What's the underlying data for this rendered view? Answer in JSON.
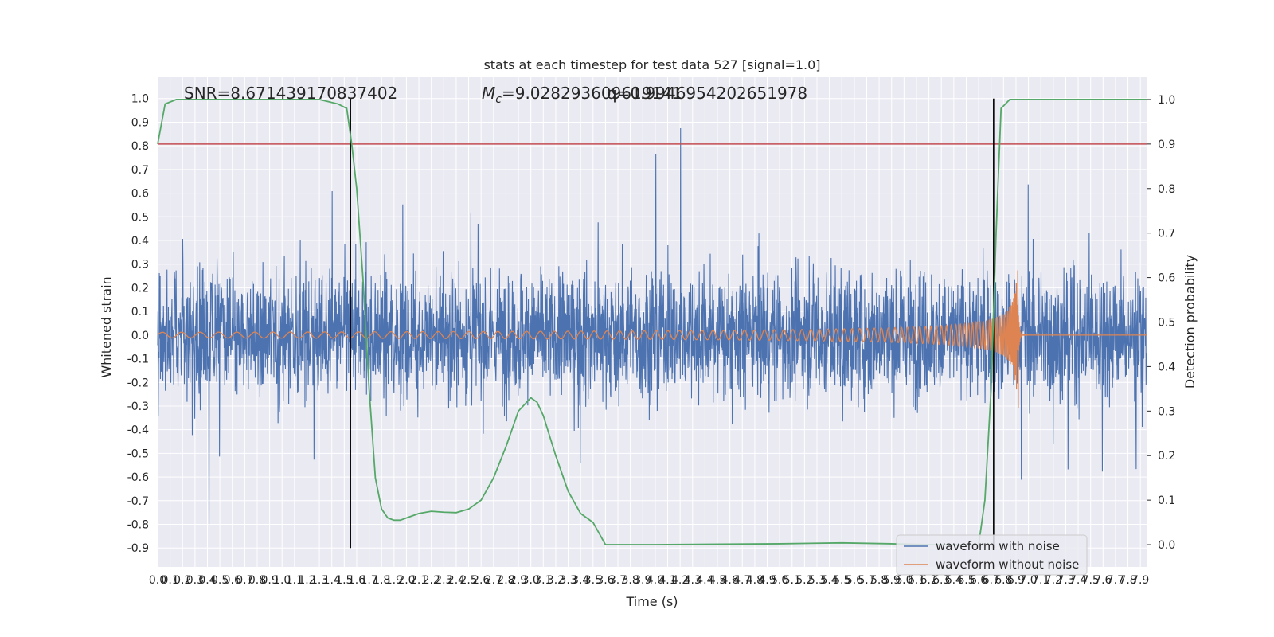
{
  "chart_data": {
    "type": "line",
    "title": "stats at each timestep for test data 527 [signal=1.0]",
    "xlabel": "Time (s)",
    "ylabel_left": "Whitened strain",
    "ylabel_right": "Detection probability",
    "xlim": [
      0.0,
      7.95
    ],
    "ylim_left": [
      -0.98,
      1.09
    ],
    "ylim_right": [
      -0.05,
      1.05
    ],
    "x_ticks": [
      "0.0",
      "0.1",
      "0.2",
      "0.3",
      "0.4",
      "0.5",
      "0.6",
      "0.7",
      "0.8",
      "0.9",
      "1.0",
      "1.1",
      "1.2",
      "1.3",
      "1.4",
      "1.5",
      "1.6",
      "1.7",
      "1.8",
      "1.9",
      "2.0",
      "2.1",
      "2.2",
      "2.3",
      "2.4",
      "2.5",
      "2.6",
      "2.7",
      "2.8",
      "2.9",
      "3.0",
      "3.1",
      "3.2",
      "3.3",
      "3.4",
      "3.5",
      "3.6",
      "3.7",
      "3.8",
      "3.9",
      "4.0",
      "4.1",
      "4.2",
      "4.3",
      "4.4",
      "4.5",
      "4.6",
      "4.7",
      "4.8",
      "4.9",
      "5.0",
      "5.1",
      "5.2",
      "5.3",
      "5.4",
      "5.5",
      "5.6",
      "5.7",
      "5.8",
      "5.9",
      "6.0",
      "6.1",
      "6.2",
      "6.3",
      "6.4",
      "6.5",
      "6.6",
      "6.7",
      "6.8",
      "6.9",
      "7.0",
      "7.1",
      "7.2",
      "7.3",
      "7.4",
      "7.5",
      "7.6",
      "7.7",
      "7.8",
      "7.9"
    ],
    "y_ticks_left": [
      "1.0",
      "0.9",
      "0.8",
      "0.7",
      "0.6",
      "0.5",
      "0.4",
      "0.3",
      "0.2",
      "0.1",
      "0.0",
      "-0.1",
      "-0.2",
      "-0.3",
      "-0.4",
      "-0.5",
      "-0.6",
      "-0.7",
      "-0.8",
      "-0.9"
    ],
    "y_ticks_right": [
      "1.0",
      "0.9",
      "0.8",
      "0.7",
      "0.6",
      "0.5",
      "0.4",
      "0.3",
      "0.2",
      "0.1",
      "0.0"
    ],
    "annotations": {
      "snr": "SNR=8.671439170837402",
      "mc": "=9.028293609619141",
      "mc_symbol": "M",
      "mc_sub": "c",
      "q": "q=0.9946954202651978"
    },
    "threshold_right": 0.9,
    "vertical_lines_x": [
      1.55,
      6.72
    ],
    "grid": true,
    "legend_position": "lower-right",
    "series": [
      {
        "name": "waveform with noise",
        "color": "#4c72b0",
        "axis": "left"
      },
      {
        "name": "waveform without noise",
        "color": "#dd8452",
        "axis": "left"
      },
      {
        "color": "#55a868",
        "axis": "right",
        "x": [
          0.0,
          0.06,
          0.15,
          0.3,
          0.6,
          1.0,
          1.3,
          1.45,
          1.52,
          1.56,
          1.6,
          1.65,
          1.7,
          1.75,
          1.8,
          1.85,
          1.9,
          1.95,
          2.0,
          2.1,
          2.2,
          2.3,
          2.4,
          2.5,
          2.6,
          2.7,
          2.8,
          2.9,
          3.0,
          3.05,
          3.1,
          3.2,
          3.3,
          3.4,
          3.5,
          3.6,
          3.7,
          4.0,
          5.0,
          5.5,
          5.9,
          6.2,
          6.5,
          6.6,
          6.65,
          6.7,
          6.74,
          6.78,
          6.85,
          6.95,
          7.1,
          7.95
        ],
        "y": [
          0.9,
          0.99,
          1.0,
          1.0,
          1.0,
          1.0,
          1.0,
          0.99,
          0.98,
          0.9,
          0.8,
          0.6,
          0.35,
          0.15,
          0.08,
          0.06,
          0.055,
          0.055,
          0.06,
          0.07,
          0.075,
          0.073,
          0.072,
          0.08,
          0.1,
          0.15,
          0.22,
          0.3,
          0.33,
          0.32,
          0.29,
          0.2,
          0.12,
          0.07,
          0.05,
          0.0,
          0.0,
          0.0,
          0.002,
          0.004,
          0.002,
          0.0,
          0.0,
          0.0,
          0.1,
          0.35,
          0.7,
          0.98,
          1.0,
          1.0,
          1.0,
          1.0
        ]
      }
    ]
  }
}
